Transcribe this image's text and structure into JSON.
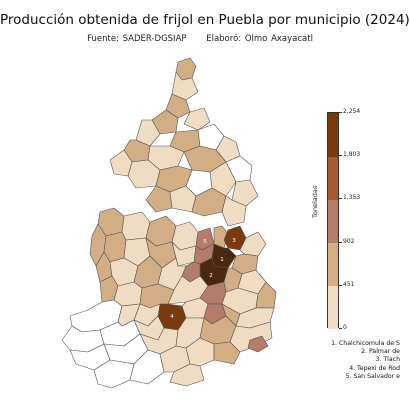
{
  "header": {
    "title": "Producción obtenida de frijol en Puebla por municipio (2024)",
    "source": "Fuente: SADER-DGSIAP",
    "author": "Elaboró: Olmo Axayacatl"
  },
  "legend": {
    "title": "Toneladas",
    "ticks": [
      "0",
      "451",
      "902",
      "1,353",
      "1,803",
      "2,254"
    ],
    "colors": [
      "#f0dcc2",
      "#d3ae85",
      "#b47c6a",
      "#a85a2e",
      "#7a3a0c",
      "#4a2810"
    ]
  },
  "annotations": [
    {
      "num": "1",
      "label": "1. Chalchicomula de S"
    },
    {
      "num": "2",
      "label": "2. Palmar de"
    },
    {
      "num": "3",
      "label": "3. Tlach"
    },
    {
      "num": "4",
      "label": "4. Tepexi de Rod"
    },
    {
      "num": "5",
      "label": "5. San Salvador e"
    }
  ],
  "map_colors": {
    "none": "#ffffff",
    "c1": "#f0dcc2",
    "c2": "#d3ae85",
    "c3": "#b47c6a",
    "c4": "#7a3a0c",
    "c5": "#4a2810",
    "border": "#555555"
  }
}
